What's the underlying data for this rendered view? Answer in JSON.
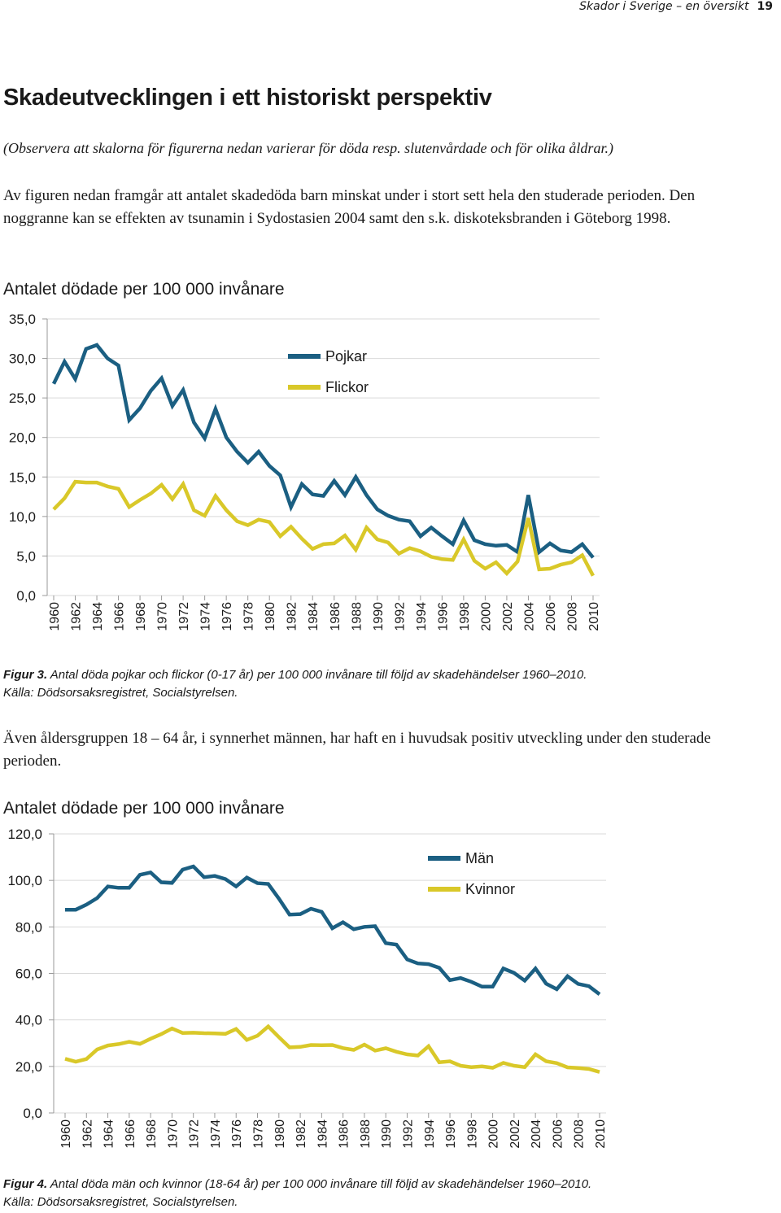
{
  "header": {
    "running_title": "Skador i Sverige – en översikt",
    "page_number": "19"
  },
  "heading": "Skadeutvecklingen i ett historiskt perspektiv",
  "note": "(Observera att skalorna för figurerna nedan varierar för döda resp. slutenvårdade och för olika åldrar.)",
  "paragraph1": "Av figuren nedan framgår att antalet skadedöda barn minskat under i stort sett hela den studerade perioden. Den noggranne kan se effekten av tsunamin i Sydostasien 2004 samt den s.k. diskoteksbranden i Göteborg 1998.",
  "paragraph2": "Även åldersgruppen 18 – 64 år, i synnerhet männen, har haft en i huvudsak positiv utveckling under den studerade perioden.",
  "figure3_caption": {
    "label": "Figur 3.",
    "text": " Antal döda pojkar och flickor (0-17 år) per 100 000 invånare till följd av skadehändelser 1960–2010.",
    "source": "Källa: Dödsorsaksregistret, Socialstyrelsen."
  },
  "figure4_caption": {
    "label": "Figur 4.",
    "text": " Antal döda män och kvinnor (18-64 år) per 100 000 invånare till följd av skadehändelser 1960–2010.",
    "source": "Källa: Dödsorsaksregistret, Socialstyrelsen."
  },
  "colors": {
    "series1": "#1b5f82",
    "series2": "#d9c829",
    "grid": "#d9d9d9",
    "axis": "#999999"
  },
  "chart_data": [
    {
      "type": "line",
      "title": "Antalet dödade per 100 000 invånare",
      "xlabel": "",
      "ylabel": "",
      "ylim": [
        0,
        35
      ],
      "yticks": [
        "0,0",
        "5,0",
        "10,0",
        "15,0",
        "20,0",
        "25,0",
        "30,0",
        "35,0"
      ],
      "ytick_values": [
        0,
        5,
        10,
        15,
        20,
        25,
        30,
        35
      ],
      "xtick_labels": [
        "1960",
        "1962",
        "1964",
        "1966",
        "1968",
        "1970",
        "1972",
        "1974",
        "1976",
        "1978",
        "1980",
        "1982",
        "1984",
        "1986",
        "1988",
        "1990",
        "1992",
        "1994",
        "1996",
        "1998",
        "2000",
        "2002",
        "2004",
        "2006",
        "2008",
        "2010"
      ],
      "x": [
        1960,
        1961,
        1962,
        1963,
        1964,
        1965,
        1966,
        1967,
        1968,
        1969,
        1970,
        1971,
        1972,
        1973,
        1974,
        1975,
        1976,
        1977,
        1978,
        1979,
        1980,
        1981,
        1982,
        1983,
        1984,
        1985,
        1986,
        1987,
        1988,
        1989,
        1990,
        1991,
        1992,
        1993,
        1994,
        1995,
        1996,
        1997,
        1998,
        1999,
        2000,
        2001,
        2002,
        2003,
        2004,
        2005,
        2006,
        2007,
        2008,
        2009,
        2010
      ],
      "legend_position": "top-center",
      "series": [
        {
          "name": "Pojkar",
          "values": [
            26.8,
            29.6,
            27.4,
            31.2,
            31.7,
            30.0,
            29.1,
            22.2,
            23.7,
            25.9,
            27.5,
            24.0,
            26.0,
            21.9,
            19.9,
            23.6,
            20.0,
            18.2,
            16.8,
            18.2,
            16.4,
            15.2,
            11.2,
            14.1,
            12.8,
            12.6,
            14.5,
            12.7,
            15.0,
            12.7,
            10.9,
            10.1,
            9.6,
            9.4,
            7.5,
            8.6,
            7.5,
            6.5,
            9.5,
            7.0,
            6.5,
            6.3,
            6.4,
            5.5,
            12.7,
            5.5,
            6.6,
            5.7,
            5.5,
            6.5,
            4.8
          ]
        },
        {
          "name": "Flickor",
          "values": [
            10.9,
            12.3,
            14.4,
            14.3,
            14.3,
            13.8,
            13.5,
            11.2,
            12.1,
            12.9,
            14.0,
            12.2,
            14.1,
            10.8,
            10.1,
            12.6,
            10.8,
            9.4,
            8.9,
            9.6,
            9.3,
            7.5,
            8.7,
            7.2,
            5.9,
            6.5,
            6.6,
            7.6,
            5.8,
            8.6,
            7.1,
            6.7,
            5.3,
            6.0,
            5.6,
            4.9,
            4.6,
            4.5,
            7.1,
            4.4,
            3.4,
            4.2,
            2.8,
            4.3,
            9.8,
            3.3,
            3.4,
            3.9,
            4.2,
            5.1,
            2.5
          ]
        }
      ]
    },
    {
      "type": "line",
      "title": "Antalet dödade per 100 000 invånare",
      "xlabel": "",
      "ylabel": "",
      "ylim": [
        0,
        120
      ],
      "yticks": [
        "0,0",
        "20,0",
        "40,0",
        "60,0",
        "80,0",
        "100,0",
        "120,0"
      ],
      "ytick_values": [
        0,
        20,
        40,
        60,
        80,
        100,
        120
      ],
      "xtick_labels": [
        "1960",
        "1962",
        "1964",
        "1966",
        "1968",
        "1970",
        "1972",
        "1974",
        "1976",
        "1978",
        "1980",
        "1982",
        "1984",
        "1986",
        "1988",
        "1990",
        "1992",
        "1994",
        "1996",
        "1998",
        "2000",
        "2002",
        "2004",
        "2006",
        "2008",
        "2010"
      ],
      "x": [
        1960,
        1961,
        1962,
        1963,
        1964,
        1965,
        1966,
        1967,
        1968,
        1969,
        1970,
        1971,
        1972,
        1973,
        1974,
        1975,
        1976,
        1977,
        1978,
        1979,
        1980,
        1981,
        1982,
        1983,
        1984,
        1985,
        1986,
        1987,
        1988,
        1989,
        1990,
        1991,
        1992,
        1993,
        1994,
        1995,
        1996,
        1997,
        1998,
        1999,
        2000,
        2001,
        2002,
        2003,
        2004,
        2005,
        2006,
        2007,
        2008,
        2009,
        2010
      ],
      "legend_position": "top-right",
      "series": [
        {
          "name": "Män",
          "values": [
            87.4,
            87.4,
            89.6,
            92.4,
            97.4,
            96.8,
            96.8,
            102.4,
            103.4,
            99.2,
            98.9,
            104.6,
            106.0,
            101.4,
            101.9,
            100.6,
            97.4,
            101.2,
            98.8,
            98.5,
            92.2,
            85.3,
            85.5,
            87.8,
            86.5,
            79.4,
            82.0,
            79.0,
            80.0,
            80.3,
            73.0,
            72.4,
            66.0,
            64.3,
            64.0,
            62.4,
            57.1,
            58.0,
            56.4,
            54.3,
            54.3,
            62.1,
            60.2,
            56.9,
            62.1,
            55.6,
            53.2,
            58.8,
            55.5,
            54.5,
            51.0
          ]
        },
        {
          "name": "Kvinnor",
          "values": [
            23.3,
            22.0,
            23.2,
            27.3,
            29.0,
            29.6,
            30.6,
            29.7,
            31.9,
            33.9,
            36.3,
            34.4,
            34.5,
            34.3,
            34.2,
            34.0,
            36.1,
            31.4,
            33.2,
            37.2,
            32.6,
            28.2,
            28.4,
            29.2,
            29.1,
            29.2,
            27.9,
            27.1,
            29.4,
            26.8,
            27.8,
            26.3,
            25.2,
            24.7,
            28.7,
            21.8,
            22.2,
            20.3,
            19.7,
            20.0,
            19.4,
            21.5,
            20.3,
            19.7,
            25.2,
            22.2,
            21.4,
            19.6,
            19.3,
            18.9,
            17.6
          ]
        }
      ]
    }
  ]
}
